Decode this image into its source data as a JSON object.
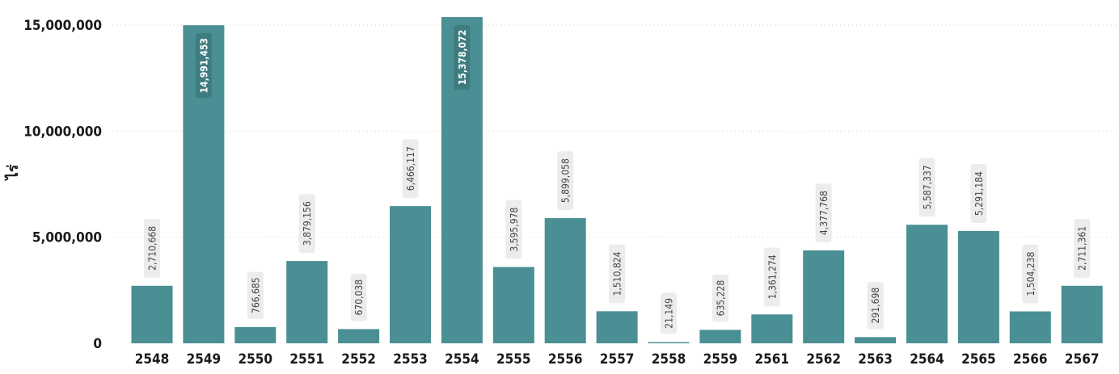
{
  "chart_data": {
    "type": "bar",
    "ylabel": "ไร่",
    "categories": [
      "2548",
      "2549",
      "2550",
      "2551",
      "2552",
      "2553",
      "2554",
      "2555",
      "2556",
      "2557",
      "2558",
      "2559",
      "2561",
      "2562",
      "2563",
      "2564",
      "2565",
      "2566",
      "2567"
    ],
    "values": [
      2710668,
      14991453,
      766685,
      3879156,
      670038,
      6466117,
      15378072,
      3595978,
      5899058,
      1510824,
      21149,
      635228,
      1361274,
      4377768,
      291698,
      5587337,
      5291184,
      1504238,
      2711361
    ],
    "value_labels": [
      "2,710,668",
      "14,991,453",
      "766,685",
      "3,879,156",
      "670,038",
      "6,466,117",
      "15,378,072",
      "3,595,978",
      "5,899,058",
      "1,510,824",
      "21,149",
      "635,228",
      "1,361,274",
      "4,377,768",
      "291,698",
      "5,587,337",
      "5,291,184",
      "1,504,238",
      "2,711,361"
    ],
    "yticks": [
      0,
      5000000,
      10000000,
      15000000
    ],
    "ytick_labels": [
      "0",
      "5,000,000",
      "10,000,000",
      "15,000,000"
    ],
    "ylim": [
      0,
      15000000
    ],
    "grid": true,
    "bar_color": "#4a8f93"
  }
}
